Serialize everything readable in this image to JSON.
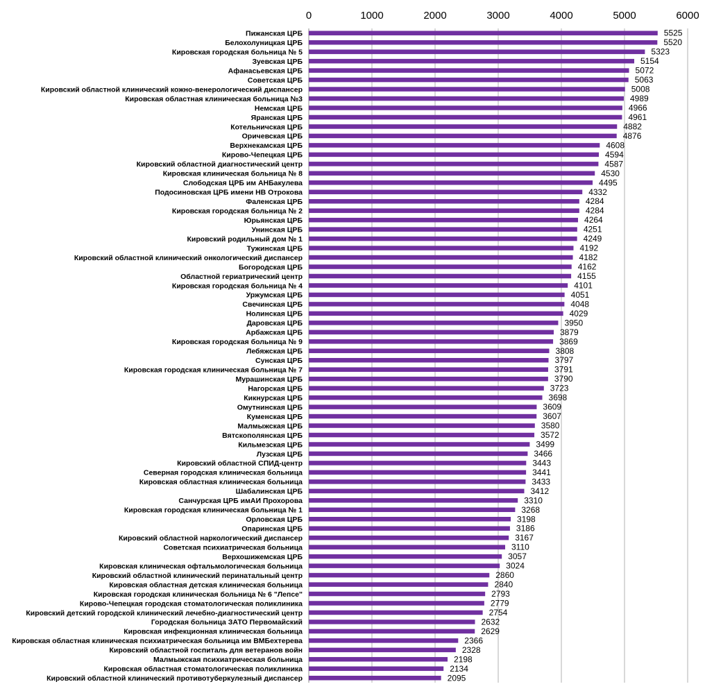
{
  "chart_data": {
    "type": "bar",
    "orientation": "horizontal",
    "title": "",
    "xlabel": "",
    "ylabel": "",
    "xlim": [
      0,
      6000
    ],
    "x_ticks": [
      0,
      1000,
      2000,
      3000,
      4000,
      5000,
      6000
    ],
    "x_axis_position": "top",
    "grid": "vertical",
    "legend": "none",
    "bar_color": "#7030A0",
    "categories": [
      "Пижанская ЦРБ",
      "Белохолуницкая ЦРБ",
      "Кировская городская больница № 5",
      "Зуевская ЦРБ",
      "Афанасьевская ЦРБ",
      "Советская ЦРБ",
      "Кировский областной  клинический кожно-венерологический диспансер",
      "Кировская областная клиническая больница №3",
      "Немская ЦРБ",
      "Яранская ЦРБ",
      "Котельничская ЦРБ",
      "Оричевская ЦРБ",
      "Верхнекамская ЦРБ",
      "Кирово-Чепецкая ЦРБ",
      "Кировский областной диагностический центр",
      "Кировская клиническая больница № 8",
      "Слободская ЦРБ им АНБакулева",
      "Подосиновская ЦРБ имени НВ Отрокова",
      "Фаленская ЦРБ",
      "Кировская городская больница № 2",
      "Юрьянская ЦРБ",
      "Унинская ЦРБ",
      "Кировский родильный дом № 1",
      "Тужинская ЦРБ",
      "Кировский областной клинический онкологический диспансер",
      "Богородская ЦРБ",
      "Областной гериатрический центр",
      "Кировская городская больница № 4",
      "Уржумская ЦРБ",
      "Свечинская ЦРБ",
      "Нолинская ЦРБ",
      "Даровская ЦРБ",
      "Арбажская ЦРБ",
      "Кировская городская больница № 9",
      "Лебяжская ЦРБ",
      "Сунская ЦРБ",
      "Кировская городская клиническая больница № 7",
      "Мурашинская ЦРБ",
      "Нагорская ЦРБ",
      "Кикнурская ЦРБ",
      "Омутнинская ЦРБ",
      "Куменская ЦРБ",
      "Малмыжская ЦРБ",
      "Вятскополянская ЦРБ",
      "Кильмезская ЦРБ",
      "Лузская ЦРБ",
      "Кировский  областной  СПИД-центр",
      "Северная городская клиническая больница",
      "Кировская областная клиническая больница",
      "Шабалинская ЦРБ",
      "Санчурская ЦРБ имАИ Прохорова",
      "Кировская городская клиническая больница № 1",
      "Орловская ЦРБ",
      "Опаринская ЦРБ",
      "Кировский областной наркологический диспансер",
      "Советская психиатрическая больница",
      "Верхошижемская ЦРБ",
      "Кировская клиническая офтальмологическая больница",
      "Кировский областной  клинический перинатальный центр",
      "Кировская областная детская клиническая больница",
      "Кировская городская клиническая больница № 6 \"Лепсе\"",
      "Кирово-Чепецкая городская стоматологическая поликлиника",
      "Кировский детский городской клинический лечебно-диагностический центр",
      "Городская  больница ЗАТО Первомайский",
      "Кировская инфекционная клиническая больница",
      "Кировская областная клиническая психиатрическая больница им ВМБехтерева",
      "Кировский областной госпиталь для ветеранов войн",
      "Малмыжская психиатрическая больница",
      "Кировская областная стоматологическая поликлиника",
      "Кировский областной клинический противотуберкулезный диспансер"
    ],
    "values": [
      5525,
      5520,
      5323,
      5154,
      5072,
      5063,
      5008,
      4989,
      4966,
      4961,
      4882,
      4876,
      4608,
      4594,
      4587,
      4530,
      4495,
      4332,
      4284,
      4284,
      4264,
      4251,
      4249,
      4192,
      4182,
      4162,
      4155,
      4101,
      4051,
      4048,
      4029,
      3950,
      3879,
      3869,
      3808,
      3797,
      3791,
      3790,
      3723,
      3698,
      3609,
      3607,
      3580,
      3572,
      3499,
      3466,
      3443,
      3441,
      3433,
      3412,
      3310,
      3268,
      3198,
      3186,
      3167,
      3110,
      3057,
      3024,
      2860,
      2840,
      2793,
      2779,
      2754,
      2632,
      2629,
      2366,
      2328,
      2198,
      2134,
      2095
    ]
  }
}
